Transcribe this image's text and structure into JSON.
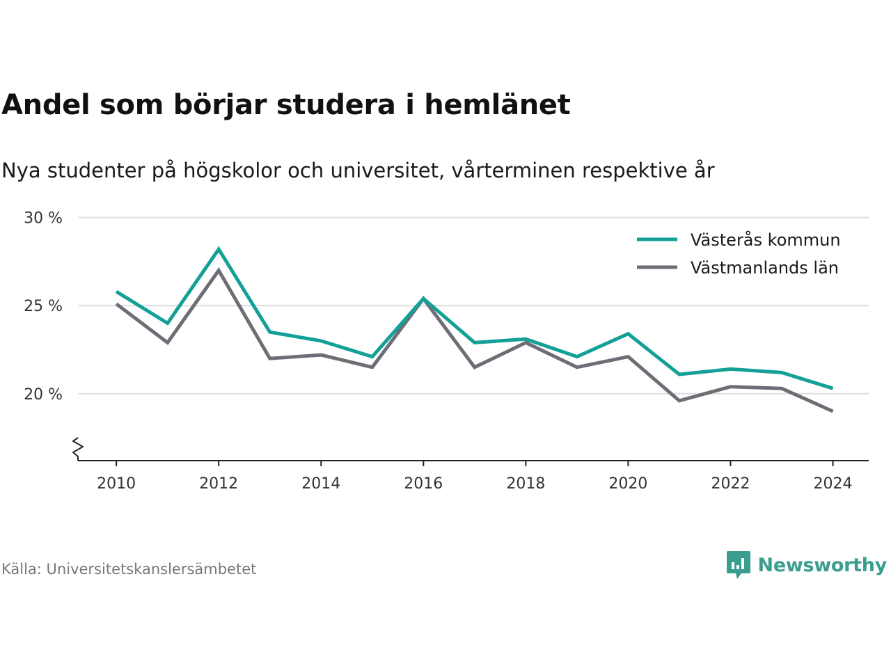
{
  "colors": {
    "vasteras": "#13a097",
    "vastmanland": "#6e6d76",
    "grid": "#dddddd",
    "axis": "#222222",
    "brand": "#3a9e8f"
  },
  "source": "Källa: Universitetskanslersämbetet",
  "brand": {
    "name": "Newsworthy",
    "icon": "newsworthy-logo-icon"
  },
  "chart_data": {
    "type": "line",
    "title": "Andel som börjar studera i hemlänet",
    "subtitle": "Nya studenter på högskolor och universitet, vårterminen respektive år",
    "xlabel": "",
    "ylabel": "",
    "x": [
      2010,
      2011,
      2012,
      2013,
      2014,
      2015,
      2016,
      2017,
      2018,
      2019,
      2020,
      2021,
      2022,
      2023,
      2024
    ],
    "xlim": [
      2009.25,
      2024.7
    ],
    "ylim": [
      16.2,
      30.5
    ],
    "yaxis_break": true,
    "x_ticks": [
      2010,
      2012,
      2014,
      2016,
      2018,
      2020,
      2022,
      2024
    ],
    "x_tick_labels": [
      "2010",
      "2012",
      "2014",
      "2016",
      "2018",
      "2020",
      "2022",
      "2024"
    ],
    "y_ticks": [
      20,
      25,
      30
    ],
    "y_tick_labels": [
      "20 %",
      "25 %",
      "30 %"
    ],
    "grid": true,
    "legend_position": "top-right",
    "series": [
      {
        "name": "Västerås kommun",
        "color": "#13a097",
        "values": [
          25.8,
          24.0,
          28.2,
          23.5,
          23.0,
          22.1,
          25.4,
          22.9,
          23.1,
          22.1,
          23.4,
          21.1,
          21.4,
          21.2,
          20.3
        ]
      },
      {
        "name": "Västmanlands län",
        "color": "#6e6d76",
        "values": [
          25.1,
          22.9,
          27.0,
          22.0,
          22.2,
          21.5,
          25.4,
          21.5,
          22.9,
          21.5,
          22.1,
          19.6,
          20.4,
          20.3,
          19.0
        ]
      }
    ]
  }
}
